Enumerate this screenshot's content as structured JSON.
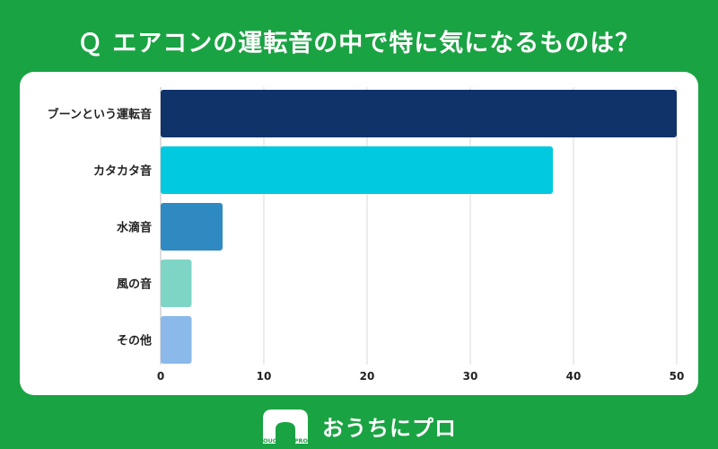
{
  "title": "Ｑ エアコンの運転音の中で特に気になるものは？",
  "chart_data": {
    "type": "bar",
    "orientation": "horizontal",
    "categories": [
      "ブーンという運転音",
      "カタカタ音",
      "水滴音",
      "風の音",
      "その他"
    ],
    "values": [
      50,
      38,
      6,
      3,
      3
    ],
    "colors": [
      "#10346a",
      "#00c9e0",
      "#2f8ac2",
      "#7ed5c6",
      "#8ab9ea"
    ],
    "xlim": [
      0,
      50
    ],
    "xticks": [
      0,
      10,
      20,
      30,
      40,
      50
    ],
    "grid": true
  },
  "footer": {
    "brand": "おうちにプロ",
    "logo_text": "OUCHI ni PRO"
  }
}
